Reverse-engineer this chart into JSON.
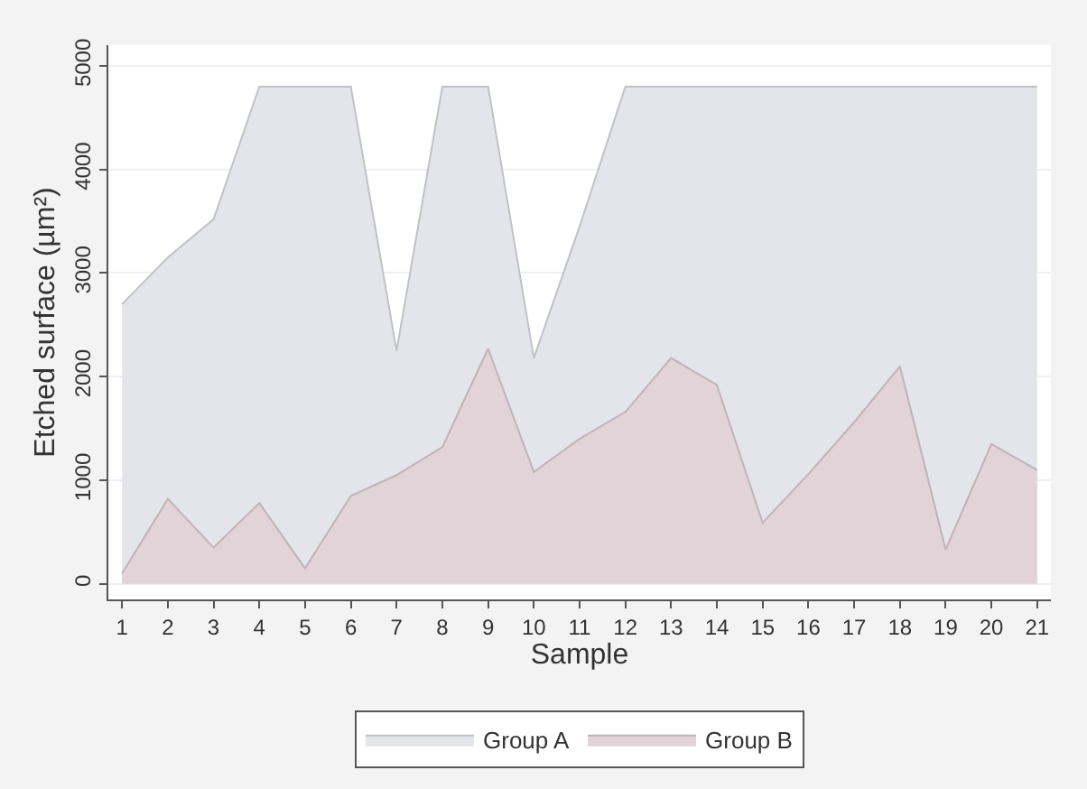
{
  "chart_data": {
    "type": "area",
    "xlabel": "Sample",
    "ylabel": "Etched surface (µm²)",
    "x": [
      1,
      2,
      3,
      4,
      5,
      6,
      7,
      8,
      9,
      10,
      11,
      12,
      13,
      14,
      15,
      16,
      17,
      18,
      19,
      20,
      21
    ],
    "xlim": [
      0.7,
      21.3
    ],
    "xticks": [
      1,
      2,
      3,
      4,
      5,
      6,
      7,
      8,
      9,
      10,
      11,
      12,
      13,
      14,
      15,
      16,
      17,
      18,
      19,
      20,
      21
    ],
    "ylim": [
      -150,
      5200
    ],
    "yticks": [
      0,
      1000,
      2000,
      3000,
      4000,
      5000
    ],
    "grid": "y",
    "legend": "bottom",
    "series": [
      {
        "name": "Group A",
        "color": "#e3e5ea",
        "values": [
          2700,
          3150,
          3520,
          4800,
          4800,
          4800,
          2250,
          4800,
          4800,
          2180,
          3450,
          4800,
          4800,
          4800,
          4800,
          4800,
          4800,
          4800,
          4800,
          4800,
          4800
        ]
      },
      {
        "name": "Group B",
        "color": "#e2d3d9",
        "values": [
          100,
          820,
          350,
          780,
          150,
          850,
          1050,
          1320,
          2270,
          1080,
          1400,
          1660,
          2180,
          1920,
          590,
          1060,
          1560,
          2100,
          330,
          1350,
          1100
        ]
      }
    ]
  }
}
